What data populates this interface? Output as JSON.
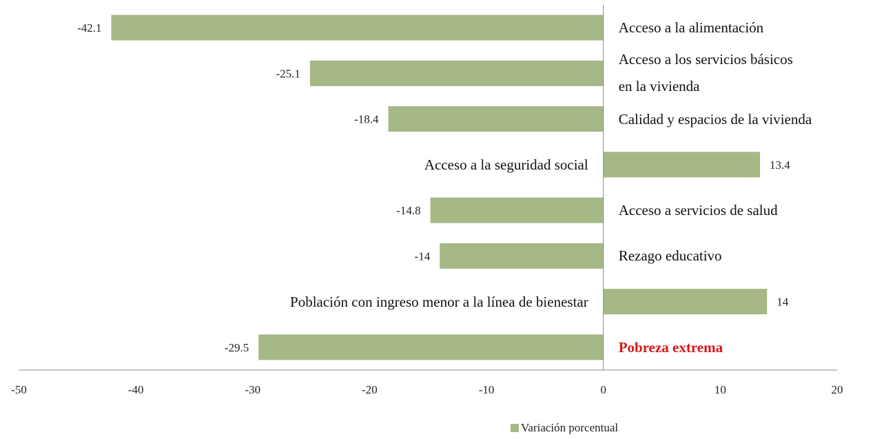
{
  "chart_data": {
    "type": "barh",
    "categories": [
      "Acceso a la alimentación",
      "Acceso a los servicios básicos en la vivienda",
      "Calidad y espacios de la vivienda",
      "Acceso a la seguridad social",
      "Acceso a servicios de salud",
      "Rezago educativo",
      "Población con ingreso menor a la línea de bienestar",
      "Pobreza extrema"
    ],
    "series": [
      {
        "name": "Variación porcentual",
        "color": "#a5b886",
        "values": [
          -42.1,
          -25.1,
          -18.4,
          13.4,
          -14.8,
          -14,
          14,
          -29.5
        ]
      }
    ],
    "xlim": [
      -50,
      20
    ],
    "xticks": [
      -50,
      -40,
      -30,
      -20,
      -10,
      0,
      10,
      20
    ],
    "grid": false,
    "legend": "bottom"
  }
}
